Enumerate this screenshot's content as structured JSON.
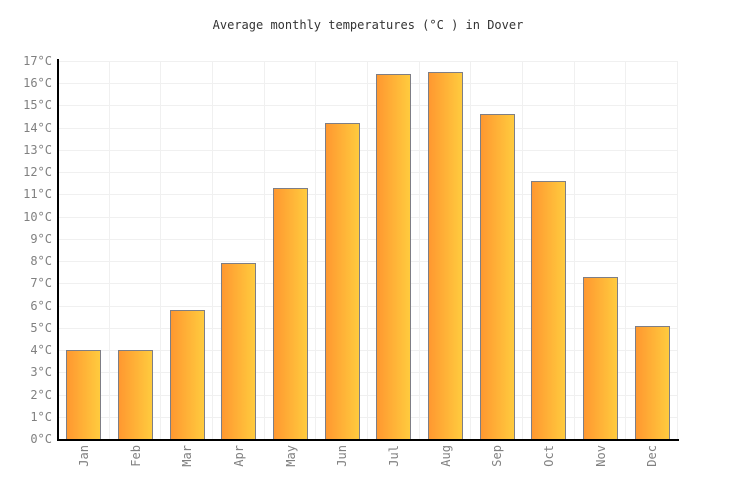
{
  "title": "Average monthly temperatures (°C ) in Dover",
  "chart_data": {
    "type": "bar",
    "title": "Average monthly temperatures (°C ) in Dover",
    "categories": [
      "Jan",
      "Feb",
      "Mar",
      "Apr",
      "May",
      "Jun",
      "Jul",
      "Aug",
      "Sep",
      "Oct",
      "Nov",
      "Dec"
    ],
    "values": [
      4.0,
      4.0,
      5.8,
      7.9,
      11.3,
      14.2,
      16.4,
      16.5,
      14.6,
      11.6,
      7.3,
      5.1
    ],
    "xlabel": "",
    "ylabel": "",
    "ylim": [
      0,
      17
    ],
    "ytick_step": 1,
    "ytick_suffix": "°C",
    "grid": true,
    "legend": "none",
    "colors": {
      "bar_gradient_left": "#ff9830",
      "bar_gradient_right": "#ffcb3e",
      "bar_border": "#7e7e85",
      "gridline": "#f0f0f0",
      "axis": "#000000",
      "tick_label": "#808080",
      "title": "#333333",
      "background": "#ffffff"
    }
  }
}
